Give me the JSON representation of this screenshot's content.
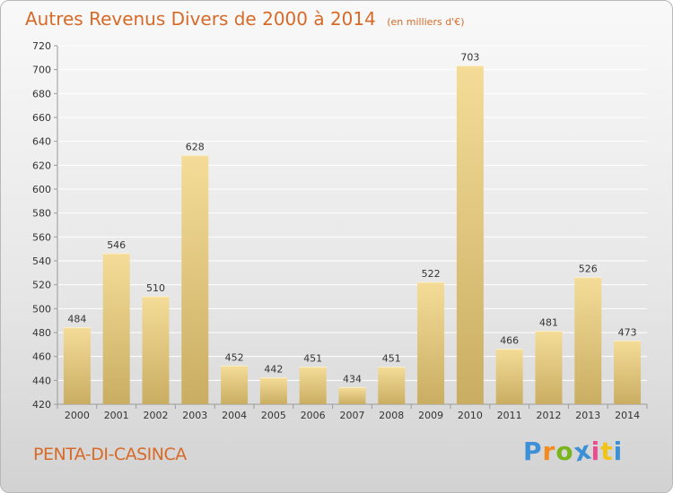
{
  "title": "Autres Revenus Divers de 2000 à 2014",
  "subtitle": "(en milliers d'€)",
  "commune": "PENTA-DI-CASINCA",
  "brand": {
    "letters": [
      "P",
      "r",
      "o",
      "x",
      "i",
      "t",
      "i"
    ],
    "colors": [
      "#3d8fd6",
      "#f28c1e",
      "#7ab51d",
      "#3d8fd6",
      "#e94c8f",
      "#f2c418",
      "#3d8fd6"
    ]
  },
  "colors": {
    "title": "#d76a28",
    "bar_light": "#f4dc98",
    "bar_dark": "#c9ad62",
    "grid": "#ffffff",
    "axis": "#999999"
  },
  "chart_data": {
    "type": "bar",
    "categories": [
      "2000",
      "2001",
      "2002",
      "2003",
      "2004",
      "2005",
      "2006",
      "2007",
      "2008",
      "2009",
      "2010",
      "2011",
      "2012",
      "2013",
      "2014"
    ],
    "values": [
      484,
      546,
      510,
      628,
      452,
      442,
      451,
      434,
      451,
      522,
      703,
      466,
      481,
      526,
      473
    ],
    "ylim": [
      420,
      720
    ],
    "yticks": [
      420,
      440,
      460,
      480,
      500,
      520,
      540,
      560,
      580,
      600,
      620,
      640,
      660,
      680,
      700,
      720
    ],
    "grid": true,
    "data_labels": true
  }
}
